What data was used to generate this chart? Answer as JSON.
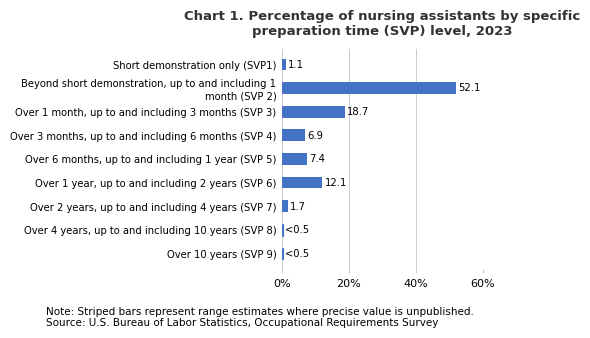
{
  "title": "Chart 1. Percentage of nursing assistants by specific\npreparation time (SVP) level, 2023",
  "categories": [
    "Short demonstration only (SVP1)",
    "Beyond short demonstration, up to and including 1\nmonth (SVP 2)",
    "Over 1 month, up to and including 3 months (SVP 3)",
    "Over 3 months, up to and including 6 months (SVP 4)",
    "Over 6 months, up to and including 1 year (SVP 5)",
    "Over 1 year, up to and including 2 years (SVP 6)",
    "Over 2 years, up to and including 4 years (SVP 7)",
    "Over 4 years, up to and including 10 years (SVP 8)",
    "Over 10 years (SVP 9)"
  ],
  "values": [
    1.1,
    52.1,
    18.7,
    6.9,
    7.4,
    12.1,
    1.7,
    0.3,
    0.3
  ],
  "labels": [
    "1.1",
    "52.1",
    "18.7",
    "6.9",
    "7.4",
    "12.1",
    "1.7",
    "<0.5",
    "<0.5"
  ],
  "striped": [
    false,
    false,
    false,
    false,
    false,
    false,
    false,
    true,
    true
  ],
  "bar_color": "#4472C4",
  "stripe_color": "#4472C4",
  "xlim": [
    0,
    60
  ],
  "xticks": [
    0,
    20,
    40,
    60
  ],
  "xticklabels": [
    "0%",
    "20%",
    "40%",
    "60%"
  ],
  "note": "Note: Striped bars represent range estimates where precise value is unpublished.\nSource: U.S. Bureau of Labor Statistics, Occupational Requirements Survey",
  "title_fontsize": 9.5,
  "label_fontsize": 7.2,
  "tick_fontsize": 8,
  "note_fontsize": 7.5,
  "background_color": "#ffffff"
}
